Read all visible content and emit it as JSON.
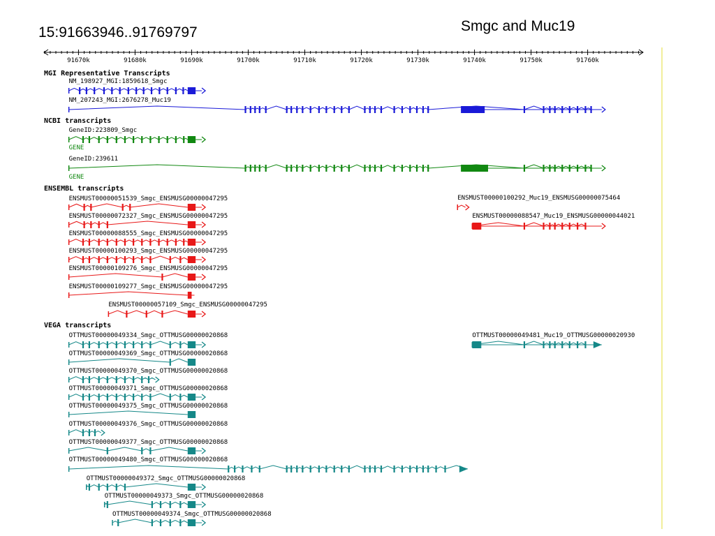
{
  "titles": {
    "coordinates": "15:91663946..91769797",
    "genes": "Smgc and Muc19"
  },
  "ruler": {
    "range_kb": [
      91663.9,
      91769.8
    ],
    "ticks": [
      "91670k",
      "91680k",
      "91690k",
      "91700k",
      "91710k",
      "91720k",
      "91730k",
      "91740k",
      "91750k",
      "91760k"
    ]
  },
  "colors": {
    "mgi": "#1a1ad8",
    "ncbi": "#118811",
    "ensembl": "#e81818",
    "vega": "#158888",
    "right_border": "#f2ee9a"
  },
  "tracks": [
    {
      "heading": "MGI Representative Transcripts",
      "color": "#1a1ad8",
      "features": [
        {
          "label": "NM_198927_MGI:1859618_Smgc",
          "gene_tag": "",
          "x0": 91668.3,
          "x1": 91691.8,
          "exon_clusters": [
            91670.2,
            91671.4,
            91672.8,
            91674.5,
            91675.9,
            91677.3,
            91678.8,
            91680.2,
            91681.5,
            91682.9,
            91684.3,
            91685.7,
            91687.2,
            91688.5
          ],
          "thick": [
            91689.3,
            91690.7
          ],
          "arrow": true
        },
        {
          "label": "NM_207243_MGI:2676278_Muc19",
          "gene_tag": "",
          "x0": 91668.3,
          "x1": 91762.5,
          "exon_clusters": [
            91699.5,
            91700.4,
            91701.2,
            91702.0,
            91703.1,
            91706.8,
            91707.6,
            91708.6,
            91709.6,
            91711.0,
            91712.5,
            91713.8,
            91715.2,
            91716.5,
            91717.8,
            91720.6,
            91721.5,
            91722.4,
            91723.5,
            91725.8,
            91727.2,
            91728.6,
            91729.8,
            91730.9,
            91731.8,
            91748.8,
            91752.2,
            91753.3,
            91754.2,
            91755.5,
            91756.8,
            91758.2,
            91759.6,
            91760.6
          ],
          "thick": [
            91737.6,
            91741.8
          ],
          "arrow": true
        }
      ]
    },
    {
      "heading": "NCBI transcripts",
      "color": "#118811",
      "features": [
        {
          "label": "GeneID:223809_Smgc",
          "gene_tag": "GENE",
          "x0": 91668.3,
          "x1": 91691.8,
          "exon_clusters": [
            91670.8,
            91671.9,
            91673.6,
            91675.1,
            91676.7,
            91678.2,
            91679.7,
            91681.2,
            91682.7,
            91684.2,
            91685.7,
            91687.2,
            91688.6
          ],
          "thick": [
            91689.3,
            91690.7
          ],
          "arrow": true
        },
        {
          "label": "GeneID:239611",
          "gene_tag": "GENE",
          "x0": 91668.3,
          "x1": 91762.5,
          "exon_clusters": [
            91699.5,
            91700.4,
            91701.2,
            91702.0,
            91703.1,
            91706.8,
            91707.6,
            91708.6,
            91709.6,
            91711.0,
            91712.5,
            91713.8,
            91715.2,
            91716.5,
            91717.8,
            91720.6,
            91721.5,
            91722.4,
            91723.5,
            91725.8,
            91727.2,
            91728.6,
            91729.8,
            91730.9,
            91731.8,
            91748.8,
            91752.2,
            91753.3,
            91754.2,
            91755.5,
            91756.8,
            91758.2,
            91759.6,
            91760.6
          ],
          "thick": [
            91737.6,
            91742.4
          ],
          "arrow": true
        }
      ]
    },
    {
      "heading": "ENSEMBL transcripts",
      "color": "#e81818",
      "features": [
        {
          "label": "ENSMUST00000051539_Smgc_ENSMUSG00000047295",
          "gene_tag": "",
          "x0": 91668.3,
          "x1": 91691.8,
          "exon_clusters": [
            91671.0,
            91672.2,
            91677.8,
            91679.1
          ],
          "thick": [
            91689.3,
            91690.7
          ],
          "arrow": true
        },
        {
          "label": "ENSMUST00000072327_Smgc_ENSMUSG00000047295",
          "gene_tag": "",
          "x0": 91668.3,
          "x1": 91691.8,
          "exon_clusters": [
            91671.0,
            91672.2,
            91673.6,
            91675.1
          ],
          "thick": [
            91689.3,
            91690.7
          ],
          "arrow": true
        },
        {
          "label": "ENSMUST00000088555_Smgc_ENSMUSG00000047295",
          "gene_tag": "",
          "x0": 91668.3,
          "x1": 91691.8,
          "exon_clusters": [
            91670.8,
            91671.9,
            91673.6,
            91675.1,
            91676.7,
            91678.2,
            91679.7,
            91681.2,
            91682.7,
            91684.2,
            91685.7,
            91687.2,
            91688.6
          ],
          "thick": [
            91689.3,
            91690.7
          ],
          "arrow": true
        },
        {
          "label": "ENSMUST00000100293_Smgc_ENSMUSG00000047295",
          "gene_tag": "",
          "x0": 91668.3,
          "x1": 91691.8,
          "exon_clusters": [
            91670.8,
            91671.9,
            91673.6,
            91675.1,
            91676.7,
            91678.2,
            91679.7,
            91681.2,
            91682.7,
            91686.2,
            91688.0
          ],
          "thick": [
            91689.3,
            91690.7
          ],
          "arrow": true
        },
        {
          "label": "ENSMUST00000109276_Smgc_ENSMUSG00000047295",
          "gene_tag": "",
          "x0": 91668.3,
          "x1": 91691.8,
          "exon_clusters": [
            91684.8
          ],
          "thick": [
            91689.3,
            91690.7
          ],
          "arrow": true
        },
        {
          "label": "ENSMUST00000109277_Smgc_ENSMUSG00000047295",
          "gene_tag": "",
          "x0": 91668.3,
          "x1": 91690.5,
          "exon_clusters": [],
          "thick": [
            91689.3,
            91690.0
          ],
          "arrow": false
        },
        {
          "label": "ENSMUST00000057109_Smgc_ENSMUSG00000047295",
          "gene_tag": "",
          "x0": 91675.3,
          "x1": 91691.8,
          "exon_clusters": [
            91678.5,
            91682.0,
            91684.8
          ],
          "thick": [
            91689.3,
            91690.7
          ],
          "arrow": true
        },
        {
          "label": "ENSMUST00000100292_Muc19_ENSMUSG00000075464",
          "gene_tag": "",
          "x0": 91737.0,
          "x1": 91738.4,
          "exon_clusters": [],
          "thick": [],
          "arrow": true
        },
        {
          "label": "ENSMUST00000088547_Muc19_ENSMUSG00000044021",
          "gene_tag": "",
          "x0": 91739.6,
          "x1": 91762.5,
          "exon_clusters": [
            91748.8,
            91752.2,
            91753.3,
            91754.2,
            91755.5,
            91756.8,
            91758.2,
            91759.6
          ],
          "thick": [
            91739.6,
            91741.2
          ],
          "arrow": true
        }
      ]
    },
    {
      "heading": "VEGA transcripts",
      "color": "#158888",
      "features": [
        {
          "label": "OTTMUST00000049334_Smgc_OTTMUSG00000020868",
          "gene_tag": "",
          "x0": 91668.3,
          "x1": 91691.8,
          "exon_clusters": [
            91670.8,
            91671.9,
            91673.6,
            91675.1,
            91676.7,
            91678.2,
            91679.7,
            91681.2,
            91682.7,
            91686.2,
            91688.0
          ],
          "thick": [
            91689.3,
            91690.7
          ],
          "arrow": true
        },
        {
          "label": "OTTMUST00000049369_Smgc_OTTMUSG00000020868",
          "gene_tag": "",
          "x0": 91668.3,
          "x1": 91690.7,
          "exon_clusters": [
            91686.2
          ],
          "thick": [
            91689.3,
            91690.7
          ],
          "arrow": false
        },
        {
          "label": "OTTMUST00000049370_Smgc_OTTMUSG00000020868",
          "gene_tag": "",
          "x0": 91668.3,
          "x1": 91683.6,
          "exon_clusters": [
            91670.8,
            91671.9,
            91673.6,
            91675.1,
            91676.7,
            91678.2,
            91679.7,
            91681.2,
            91682.4
          ],
          "thick": [],
          "arrow": true
        },
        {
          "label": "OTTMUST00000049371_Smgc_OTTMUSG00000020868",
          "gene_tag": "",
          "x0": 91668.3,
          "x1": 91691.8,
          "exon_clusters": [
            91670.8,
            91671.9,
            91673.6,
            91675.1,
            91676.7,
            91678.2,
            91679.7,
            91681.2,
            91682.7,
            91686.2,
            91688.0
          ],
          "thick": [
            91689.3,
            91690.7
          ],
          "arrow": true
        },
        {
          "label": "OTTMUST00000049375_Smgc_OTTMUSG00000020868",
          "gene_tag": "",
          "x0": 91668.3,
          "x1": 91690.7,
          "exon_clusters": [],
          "thick": [
            91689.3,
            91690.7
          ],
          "arrow": false
        },
        {
          "label": "OTTMUST00000049376_Smgc_OTTMUSG00000020868",
          "gene_tag": "",
          "x0": 91668.3,
          "x1": 91674.0,
          "exon_clusters": [
            91670.8,
            91671.9,
            91672.9
          ],
          "thick": [],
          "arrow": true
        },
        {
          "label": "OTTMUST00000049377_Smgc_OTTMUSG00000020868",
          "gene_tag": "",
          "x0": 91668.3,
          "x1": 91691.8,
          "exon_clusters": [
            91675.1,
            91681.2,
            91682.7
          ],
          "thick": [
            91689.3,
            91690.7
          ],
          "arrow": true
        },
        {
          "label": "OTTMUST00000049480_Smgc_OTTMUSG00000020868",
          "gene_tag": "",
          "x0": 91668.3,
          "x1": 91738.8,
          "exon_clusters": [
            91696.5,
            91697.6,
            91699.0,
            91700.6,
            91702.0,
            91706.8,
            91707.6,
            91708.6,
            91709.6,
            91711.0,
            91712.5,
            91713.8,
            91715.2,
            91716.5,
            91717.8,
            91720.6,
            91721.5,
            91722.4,
            91723.5,
            91725.8,
            91727.2,
            91728.6,
            91729.8,
            91730.9,
            91731.8,
            91733.2,
            91734.8
          ],
          "thick": [],
          "arrow": "solid"
        },
        {
          "label": "OTTMUST00000049372_Smgc_OTTMUSG00000020868",
          "gene_tag": "",
          "x0": 91671.4,
          "x1": 91691.8,
          "exon_clusters": [
            91671.9,
            91673.6,
            91675.1,
            91676.7,
            91678.2
          ],
          "thick": [
            91689.3,
            91690.7
          ],
          "arrow": true
        },
        {
          "label": "OTTMUST00000049373_Smgc_OTTMUSG00000020868",
          "gene_tag": "",
          "x0": 91674.6,
          "x1": 91691.8,
          "exon_clusters": [
            91675.1,
            91683.0,
            91684.5,
            91686.2,
            91688.0
          ],
          "thick": [
            91689.3,
            91690.7
          ],
          "arrow": true
        },
        {
          "label": "OTTMUST00000049374_Smgc_OTTMUSG00000020868",
          "gene_tag": "",
          "x0": 91676.0,
          "x1": 91691.8,
          "exon_clusters": [
            91677.0,
            91683.0,
            91684.5,
            91686.2,
            91688.0
          ],
          "thick": [
            91689.3,
            91690.7
          ],
          "arrow": true
        },
        {
          "label": "OTTMUST00000049481_Muc19_OTTMUSG00000020930",
          "gene_tag": "",
          "x0": 91739.6,
          "x1": 91762.5,
          "exon_clusters": [
            91748.8,
            91752.2,
            91753.3,
            91754.2,
            91755.5,
            91756.8,
            91758.2,
            91759.6
          ],
          "thick": [
            91739.6,
            91741.2
          ],
          "arrow": "solid"
        }
      ]
    }
  ]
}
